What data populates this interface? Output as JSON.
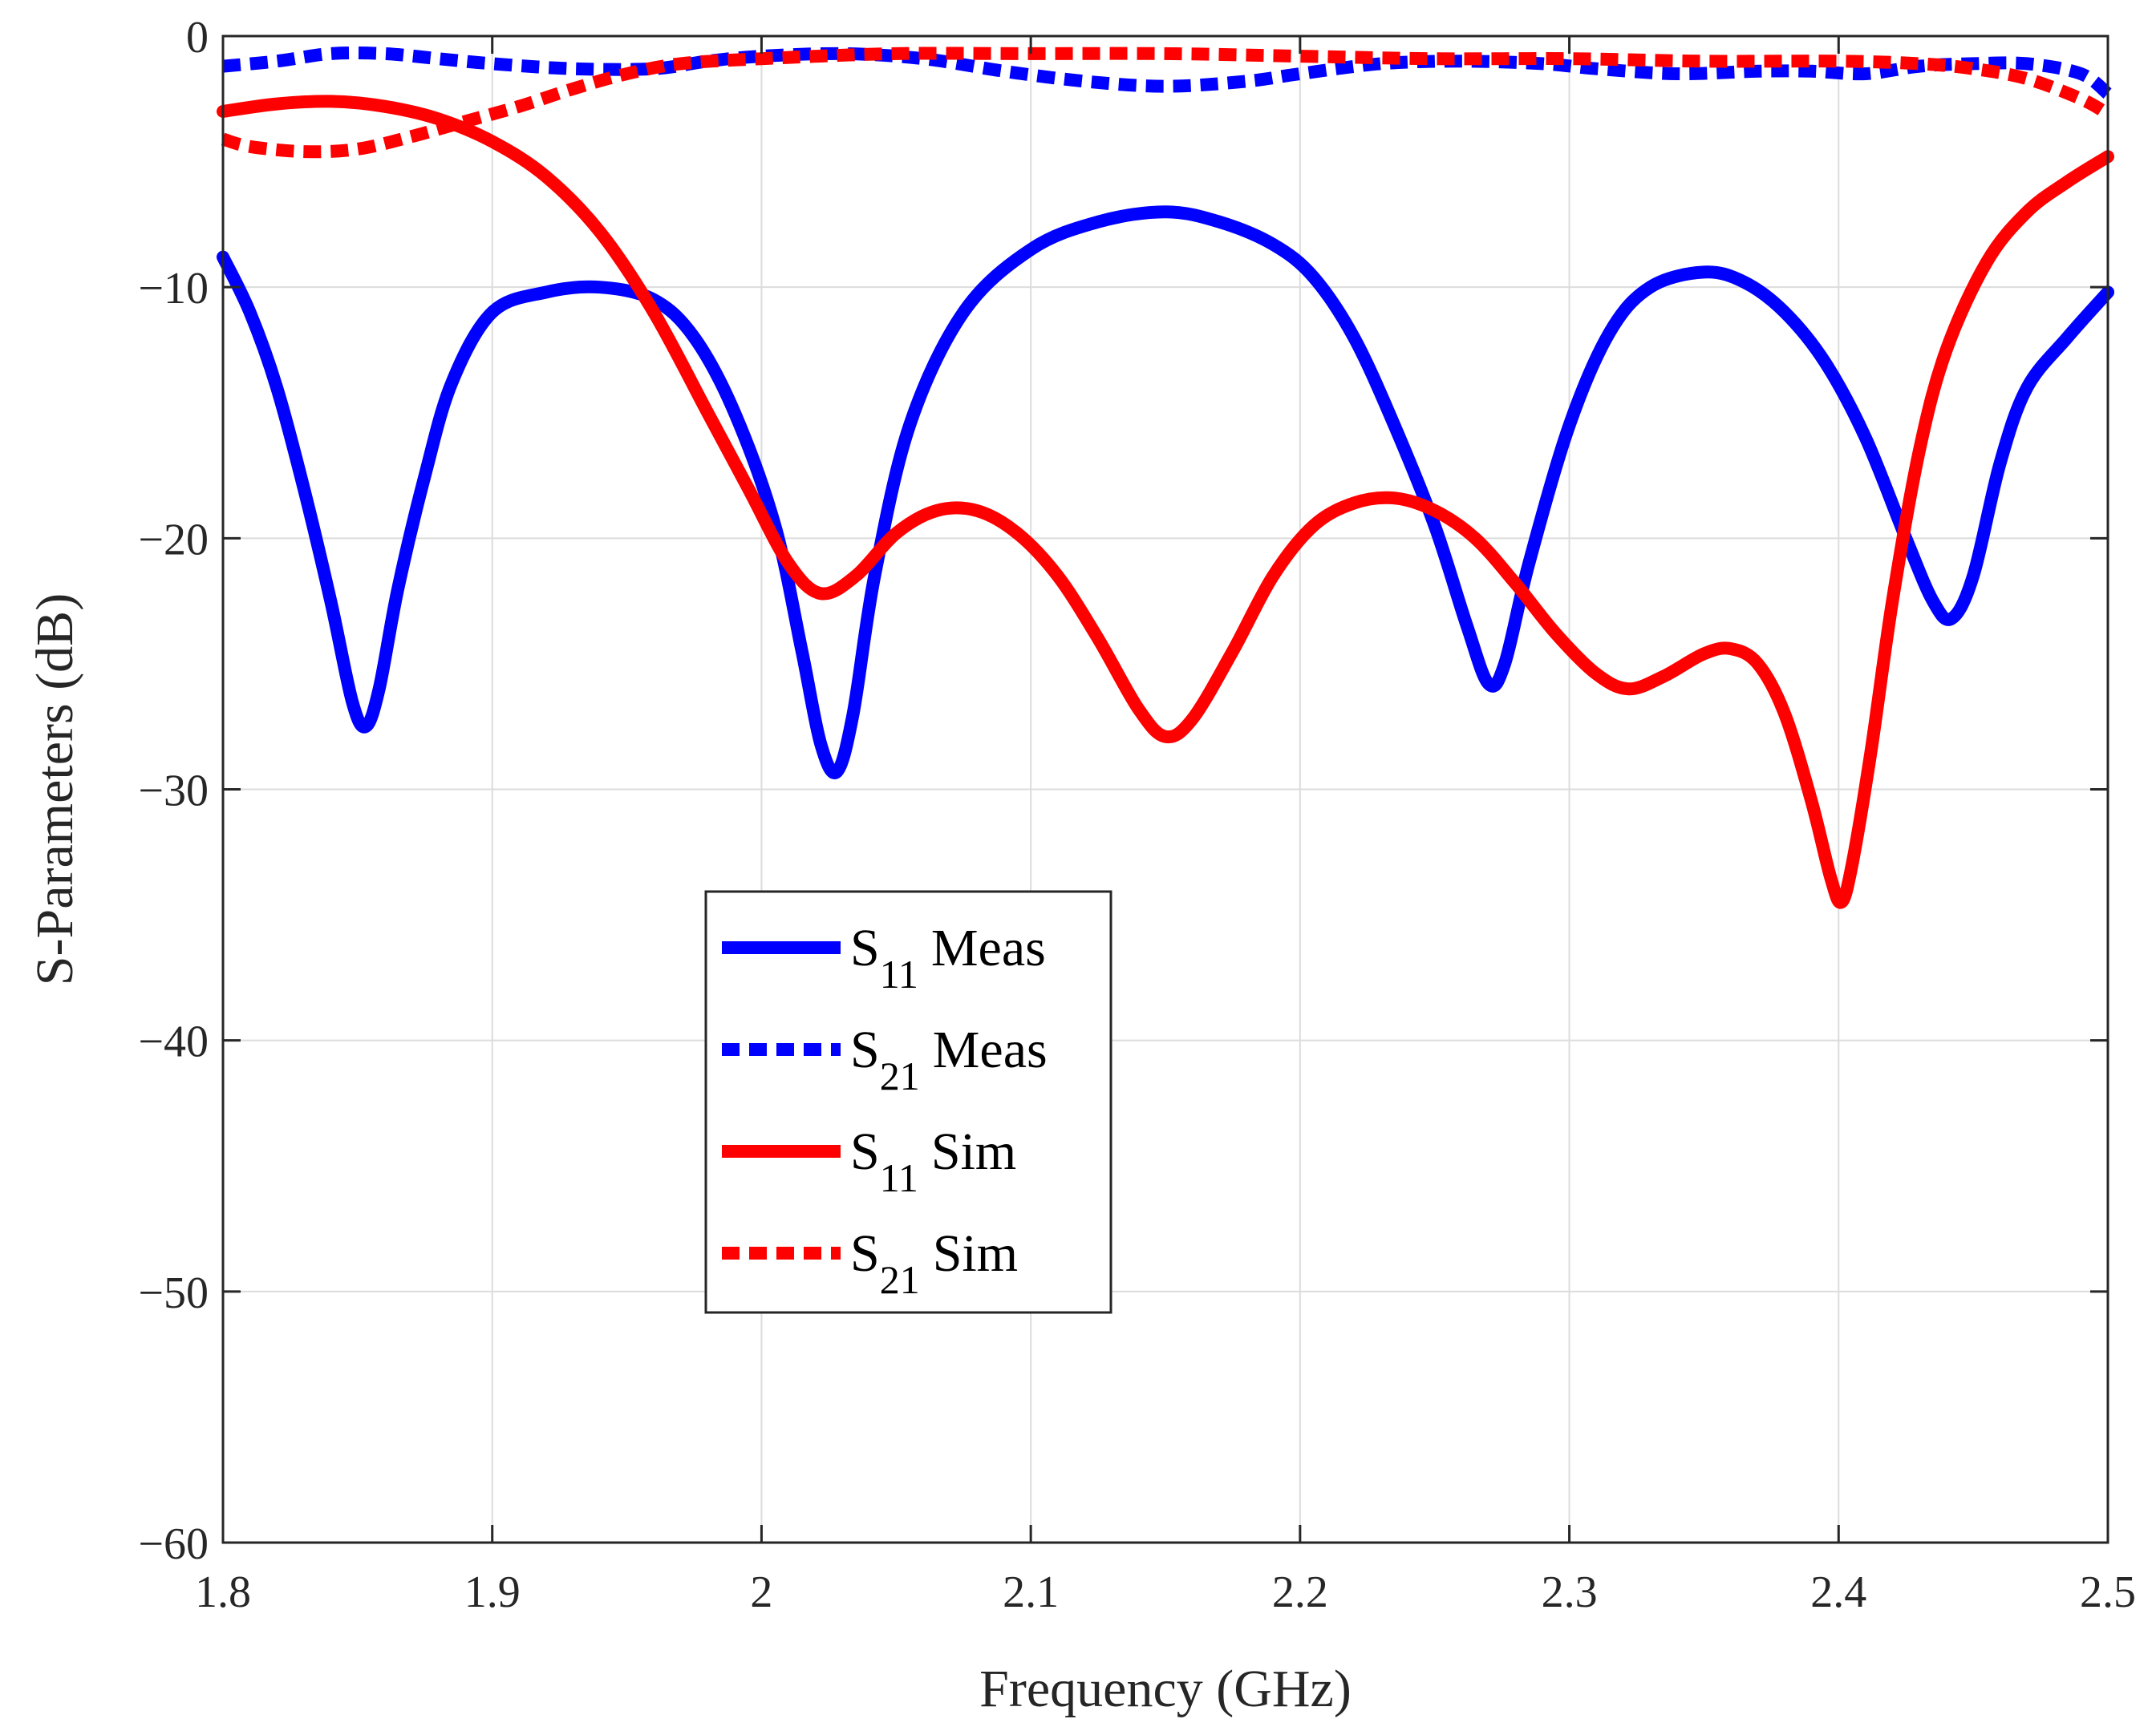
{
  "chart_data": {
    "type": "line",
    "xlabel": "Frequency (GHz)",
    "ylabel": "S-Parameters (dB)",
    "xlim": [
      1.8,
      2.5
    ],
    "ylim": [
      -60,
      0
    ],
    "xticks": [
      1.8,
      1.9,
      2.0,
      2.1,
      2.2,
      2.3,
      2.4,
      2.5
    ],
    "xtick_labels": [
      "1.8",
      "1.9",
      "2",
      "2.1",
      "2.2",
      "2.3",
      "2.4",
      "2.5"
    ],
    "yticks": [
      0,
      -10,
      -20,
      -30,
      -40,
      -50,
      -60
    ],
    "ytick_labels": [
      "0",
      "−10",
      "−20",
      "−30",
      "−40",
      "−50",
      "−60"
    ],
    "grid": true,
    "legend_position": "center-left",
    "series": [
      {
        "key": "s11_meas",
        "name_main": "S",
        "name_sub": "11",
        "name_rest": "Meas",
        "color": "#0000ff",
        "style": "solid",
        "points": [
          [
            1.8,
            -8.8
          ],
          [
            1.81,
            -11.0
          ],
          [
            1.82,
            -14.0
          ],
          [
            1.83,
            -18.0
          ],
          [
            1.84,
            -22.5
          ],
          [
            1.848,
            -26.5
          ],
          [
            1.853,
            -27.5
          ],
          [
            1.858,
            -26.0
          ],
          [
            1.865,
            -22.0
          ],
          [
            1.875,
            -17.5
          ],
          [
            1.885,
            -13.8
          ],
          [
            1.9,
            -11.0
          ],
          [
            1.92,
            -10.2
          ],
          [
            1.94,
            -10.0
          ],
          [
            1.96,
            -10.5
          ],
          [
            1.975,
            -12.0
          ],
          [
            1.99,
            -15.0
          ],
          [
            2.005,
            -19.5
          ],
          [
            2.015,
            -24.5
          ],
          [
            2.022,
            -28.2
          ],
          [
            2.028,
            -29.3
          ],
          [
            2.034,
            -27.0
          ],
          [
            2.042,
            -21.5
          ],
          [
            2.055,
            -15.5
          ],
          [
            2.075,
            -11.0
          ],
          [
            2.1,
            -8.5
          ],
          [
            2.125,
            -7.4
          ],
          [
            2.15,
            -7.0
          ],
          [
            2.17,
            -7.4
          ],
          [
            2.19,
            -8.3
          ],
          [
            2.205,
            -9.6
          ],
          [
            2.22,
            -12.0
          ],
          [
            2.235,
            -15.5
          ],
          [
            2.25,
            -19.5
          ],
          [
            2.262,
            -23.5
          ],
          [
            2.27,
            -25.8
          ],
          [
            2.276,
            -25.0
          ],
          [
            2.285,
            -21.0
          ],
          [
            2.3,
            -15.5
          ],
          [
            2.315,
            -11.8
          ],
          [
            2.33,
            -10.0
          ],
          [
            2.35,
            -9.4
          ],
          [
            2.365,
            -9.8
          ],
          [
            2.38,
            -11.0
          ],
          [
            2.395,
            -13.0
          ],
          [
            2.41,
            -16.0
          ],
          [
            2.425,
            -20.0
          ],
          [
            2.435,
            -22.5
          ],
          [
            2.442,
            -23.2
          ],
          [
            2.45,
            -21.5
          ],
          [
            2.46,
            -17.0
          ],
          [
            2.47,
            -14.0
          ],
          [
            2.485,
            -12.0
          ],
          [
            2.5,
            -10.2
          ]
        ]
      },
      {
        "key": "s21_meas",
        "name_main": "S",
        "name_sub": "21",
        "name_rest": "Meas",
        "color": "#0000ff",
        "style": "dashed",
        "points": [
          [
            1.8,
            -1.2
          ],
          [
            1.82,
            -1.0
          ],
          [
            1.84,
            -0.7
          ],
          [
            1.86,
            -0.7
          ],
          [
            1.88,
            -0.9
          ],
          [
            1.9,
            -1.1
          ],
          [
            1.93,
            -1.3
          ],
          [
            1.96,
            -1.3
          ],
          [
            1.98,
            -1.0
          ],
          [
            2.0,
            -0.8
          ],
          [
            2.03,
            -0.7
          ],
          [
            2.06,
            -0.9
          ],
          [
            2.09,
            -1.4
          ],
          [
            2.12,
            -1.8
          ],
          [
            2.15,
            -2.0
          ],
          [
            2.18,
            -1.8
          ],
          [
            2.2,
            -1.5
          ],
          [
            2.23,
            -1.1
          ],
          [
            2.26,
            -1.0
          ],
          [
            2.29,
            -1.1
          ],
          [
            2.31,
            -1.3
          ],
          [
            2.34,
            -1.5
          ],
          [
            2.37,
            -1.4
          ],
          [
            2.39,
            -1.4
          ],
          [
            2.41,
            -1.5
          ],
          [
            2.43,
            -1.2
          ],
          [
            2.45,
            -1.1
          ],
          [
            2.47,
            -1.1
          ],
          [
            2.49,
            -1.5
          ],
          [
            2.5,
            -2.3
          ]
        ]
      },
      {
        "key": "s11_sim",
        "name_main": "S",
        "name_sub": "11",
        "name_rest": "Sim",
        "color": "#ff0000",
        "style": "solid",
        "points": [
          [
            1.8,
            -3.0
          ],
          [
            1.82,
            -2.7
          ],
          [
            1.84,
            -2.6
          ],
          [
            1.86,
            -2.8
          ],
          [
            1.88,
            -3.3
          ],
          [
            1.9,
            -4.2
          ],
          [
            1.92,
            -5.6
          ],
          [
            1.94,
            -7.8
          ],
          [
            1.96,
            -11.0
          ],
          [
            1.98,
            -15.0
          ],
          [
            1.995,
            -18.0
          ],
          [
            2.01,
            -21.0
          ],
          [
            2.022,
            -22.2
          ],
          [
            2.035,
            -21.5
          ],
          [
            2.05,
            -19.8
          ],
          [
            2.065,
            -18.9
          ],
          [
            2.08,
            -18.9
          ],
          [
            2.095,
            -19.8
          ],
          [
            2.11,
            -21.5
          ],
          [
            2.125,
            -24.0
          ],
          [
            2.14,
            -26.8
          ],
          [
            2.15,
            -27.9
          ],
          [
            2.16,
            -27.2
          ],
          [
            2.175,
            -24.5
          ],
          [
            2.19,
            -21.5
          ],
          [
            2.205,
            -19.5
          ],
          [
            2.22,
            -18.6
          ],
          [
            2.235,
            -18.4
          ],
          [
            2.25,
            -18.9
          ],
          [
            2.265,
            -20.0
          ],
          [
            2.28,
            -21.8
          ],
          [
            2.295,
            -23.8
          ],
          [
            2.31,
            -25.4
          ],
          [
            2.322,
            -26.0
          ],
          [
            2.335,
            -25.5
          ],
          [
            2.35,
            -24.6
          ],
          [
            2.36,
            -24.4
          ],
          [
            2.37,
            -25.0
          ],
          [
            2.38,
            -27.0
          ],
          [
            2.39,
            -30.5
          ],
          [
            2.397,
            -33.5
          ],
          [
            2.401,
            -34.5
          ],
          [
            2.405,
            -33.0
          ],
          [
            2.412,
            -28.5
          ],
          [
            2.42,
            -22.5
          ],
          [
            2.43,
            -16.5
          ],
          [
            2.44,
            -12.5
          ],
          [
            2.455,
            -9.0
          ],
          [
            2.47,
            -7.0
          ],
          [
            2.485,
            -5.8
          ],
          [
            2.5,
            -4.8
          ]
        ]
      },
      {
        "key": "s21_sim",
        "name_main": "S",
        "name_sub": "21",
        "name_rest": "Sim",
        "color": "#ff0000",
        "style": "dashed",
        "points": [
          [
            1.8,
            -4.1
          ],
          [
            1.81,
            -4.4
          ],
          [
            1.83,
            -4.6
          ],
          [
            1.85,
            -4.5
          ],
          [
            1.87,
            -4.0
          ],
          [
            1.89,
            -3.4
          ],
          [
            1.91,
            -2.8
          ],
          [
            1.93,
            -2.1
          ],
          [
            1.95,
            -1.5
          ],
          [
            1.97,
            -1.1
          ],
          [
            2.0,
            -0.9
          ],
          [
            2.05,
            -0.7
          ],
          [
            2.1,
            -0.7
          ],
          [
            2.15,
            -0.7
          ],
          [
            2.2,
            -0.8
          ],
          [
            2.25,
            -0.9
          ],
          [
            2.3,
            -0.9
          ],
          [
            2.35,
            -1.0
          ],
          [
            2.4,
            -1.0
          ],
          [
            2.43,
            -1.1
          ],
          [
            2.45,
            -1.3
          ],
          [
            2.47,
            -1.7
          ],
          [
            2.49,
            -2.5
          ],
          [
            2.5,
            -3.1
          ]
        ]
      }
    ]
  }
}
